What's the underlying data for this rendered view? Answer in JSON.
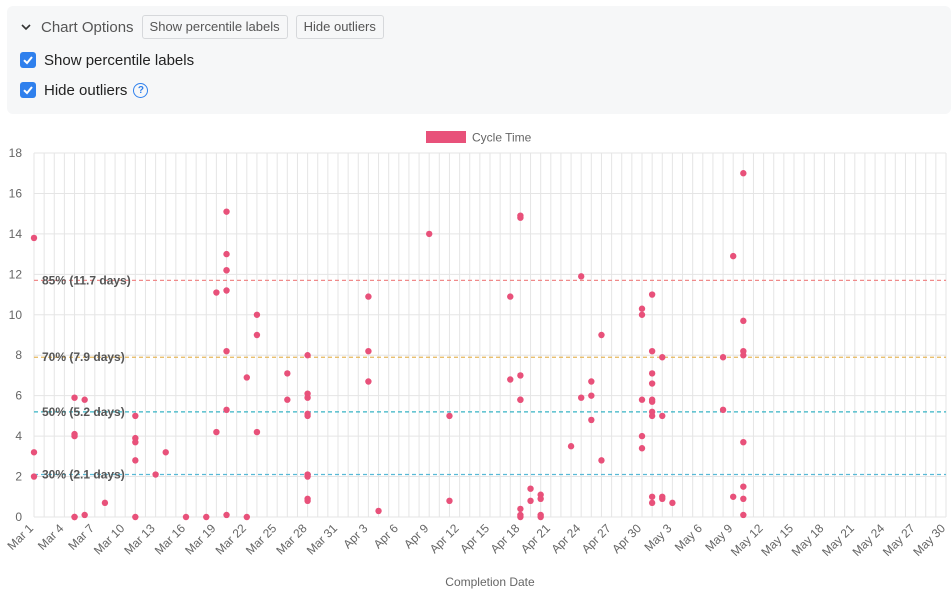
{
  "options": {
    "title": "Chart Options",
    "chip_percentile": "Show percentile labels",
    "chip_outliers": "Hide outliers",
    "show_percentile_label": "Show percentile labels",
    "hide_outliers_label": "Hide outliers",
    "show_percentile_checked": true,
    "hide_outliers_checked": true,
    "help_icon": "question-circle-icon",
    "chevron_icon": "chevron-down-icon"
  },
  "colors": {
    "points": "#e8517a",
    "p85": "#f08a8a",
    "p70": "#e6b85c",
    "p50": "#36b3c4",
    "p30": "#58b9d6",
    "grid": "#e5e5e5",
    "checkbox": "#2f80ed"
  },
  "chart_data": {
    "type": "scatter",
    "legend": [
      "Cycle Time"
    ],
    "legend_position": "top",
    "xlabel": "Completion Date",
    "ylabel": "",
    "ylim": [
      0,
      18
    ],
    "y_ticks": [
      "0",
      "2",
      "4",
      "6",
      "8",
      "10",
      "12",
      "14",
      "16",
      "18"
    ],
    "x_range": [
      "Mar 1",
      "May 30"
    ],
    "x_ticks": [
      "Mar 1",
      "Mar 4",
      "Mar 7",
      "Mar 10",
      "Mar 13",
      "Mar 16",
      "Mar 19",
      "Mar 22",
      "Mar 25",
      "Mar 28",
      "Mar 31",
      "Apr 3",
      "Apr 6",
      "Apr 9",
      "Apr 12",
      "Apr 15",
      "Apr 18",
      "Apr 21",
      "Apr 24",
      "Apr 27",
      "Apr 30",
      "May 3",
      "May 6",
      "May 9",
      "May 12",
      "May 15",
      "May 18",
      "May 21",
      "May 24",
      "May 27",
      "May 30"
    ],
    "grid": true,
    "percentiles": [
      {
        "label": "85% (11.7 days)",
        "value": 11.7
      },
      {
        "label": "70% (7.9 days)",
        "value": 7.9
      },
      {
        "label": "50% (5.2 days)",
        "value": 5.2
      },
      {
        "label": "30% (2.1 days)",
        "value": 2.1
      }
    ],
    "series": [
      {
        "name": "Cycle Time",
        "points": [
          [
            "Mar 1",
            13.8
          ],
          [
            "Mar 1",
            3.2
          ],
          [
            "Mar 1",
            2.0
          ],
          [
            "Mar 5",
            5.9
          ],
          [
            "Mar 5",
            4.1
          ],
          [
            "Mar 5",
            4.0
          ],
          [
            "Mar 5",
            0.0
          ],
          [
            "Mar 5",
            0.0
          ],
          [
            "Mar 6",
            5.8
          ],
          [
            "Mar 6",
            0.1
          ],
          [
            "Mar 8",
            0.7
          ],
          [
            "Mar 11",
            5.0
          ],
          [
            "Mar 11",
            3.9
          ],
          [
            "Mar 11",
            3.7
          ],
          [
            "Mar 11",
            2.8
          ],
          [
            "Mar 11",
            0.0
          ],
          [
            "Mar 13",
            2.1
          ],
          [
            "Mar 14",
            3.2
          ],
          [
            "Mar 16",
            0.0
          ],
          [
            "Mar 18",
            0.0
          ],
          [
            "Mar 19",
            11.1
          ],
          [
            "Mar 19",
            4.2
          ],
          [
            "Mar 20",
            15.1
          ],
          [
            "Mar 20",
            13.0
          ],
          [
            "Mar 20",
            12.2
          ],
          [
            "Mar 20",
            12.2
          ],
          [
            "Mar 20",
            11.2
          ],
          [
            "Mar 20",
            8.2
          ],
          [
            "Mar 20",
            5.3
          ],
          [
            "Mar 20",
            0.1
          ],
          [
            "Mar 22",
            6.9
          ],
          [
            "Mar 22",
            0.0
          ],
          [
            "Mar 23",
            10.0
          ],
          [
            "Mar 23",
            9.0
          ],
          [
            "Mar 23",
            4.2
          ],
          [
            "Mar 26",
            7.1
          ],
          [
            "Mar 26",
            5.8
          ],
          [
            "Mar 28",
            8.0
          ],
          [
            "Mar 28",
            6.1
          ],
          [
            "Mar 28",
            5.9
          ],
          [
            "Mar 28",
            5.1
          ],
          [
            "Mar 28",
            5.0
          ],
          [
            "Mar 28",
            2.1
          ],
          [
            "Mar 28",
            2.0
          ],
          [
            "Mar 28",
            0.9
          ],
          [
            "Mar 28",
            0.8
          ],
          [
            "Apr 3",
            10.9
          ],
          [
            "Apr 3",
            8.2
          ],
          [
            "Apr 3",
            6.7
          ],
          [
            "Apr 4",
            0.3
          ],
          [
            "Apr 9",
            14.0
          ],
          [
            "Apr 11",
            5.0
          ],
          [
            "Apr 11",
            0.8
          ],
          [
            "Apr 17",
            10.9
          ],
          [
            "Apr 17",
            6.8
          ],
          [
            "Apr 18",
            14.8
          ],
          [
            "Apr 18",
            14.9
          ],
          [
            "Apr 18",
            7.0
          ],
          [
            "Apr 18",
            5.8
          ],
          [
            "Apr 18",
            5.8
          ],
          [
            "Apr 18",
            0.4
          ],
          [
            "Apr 18",
            0.1
          ],
          [
            "Apr 18",
            0.0
          ],
          [
            "Apr 19",
            1.4
          ],
          [
            "Apr 19",
            0.8
          ],
          [
            "Apr 20",
            1.1
          ],
          [
            "Apr 20",
            0.9
          ],
          [
            "Apr 20",
            0.1
          ],
          [
            "Apr 20",
            0.0
          ],
          [
            "Apr 23",
            3.5
          ],
          [
            "Apr 24",
            11.9
          ],
          [
            "Apr 24",
            5.9
          ],
          [
            "Apr 25",
            6.7
          ],
          [
            "Apr 25",
            6.0
          ],
          [
            "Apr 25",
            4.8
          ],
          [
            "Apr 26",
            9.0
          ],
          [
            "Apr 26",
            2.8
          ],
          [
            "Apr 30",
            10.3
          ],
          [
            "Apr 30",
            10.0
          ],
          [
            "Apr 30",
            5.8
          ],
          [
            "Apr 30",
            4.0
          ],
          [
            "Apr 30",
            3.4
          ],
          [
            "May 1",
            11.0
          ],
          [
            "May 1",
            8.2
          ],
          [
            "May 1",
            7.1
          ],
          [
            "May 1",
            6.6
          ],
          [
            "May 1",
            5.8
          ],
          [
            "May 1",
            5.7
          ],
          [
            "May 1",
            5.2
          ],
          [
            "May 1",
            5.0
          ],
          [
            "May 1",
            1.0
          ],
          [
            "May 1",
            0.7
          ],
          [
            "May 2",
            7.9
          ],
          [
            "May 2",
            5.0
          ],
          [
            "May 2",
            1.0
          ],
          [
            "May 2",
            0.9
          ],
          [
            "May 3",
            0.7
          ],
          [
            "May 8",
            7.9
          ],
          [
            "May 8",
            5.3
          ],
          [
            "May 9",
            12.9
          ],
          [
            "May 9",
            1.0
          ],
          [
            "May 10",
            17.0
          ],
          [
            "May 10",
            9.7
          ],
          [
            "May 10",
            8.2
          ],
          [
            "May 10",
            8.0
          ],
          [
            "May 10",
            3.7
          ],
          [
            "May 10",
            1.5
          ],
          [
            "May 10",
            0.9
          ],
          [
            "May 10",
            0.1
          ]
        ]
      }
    ]
  }
}
